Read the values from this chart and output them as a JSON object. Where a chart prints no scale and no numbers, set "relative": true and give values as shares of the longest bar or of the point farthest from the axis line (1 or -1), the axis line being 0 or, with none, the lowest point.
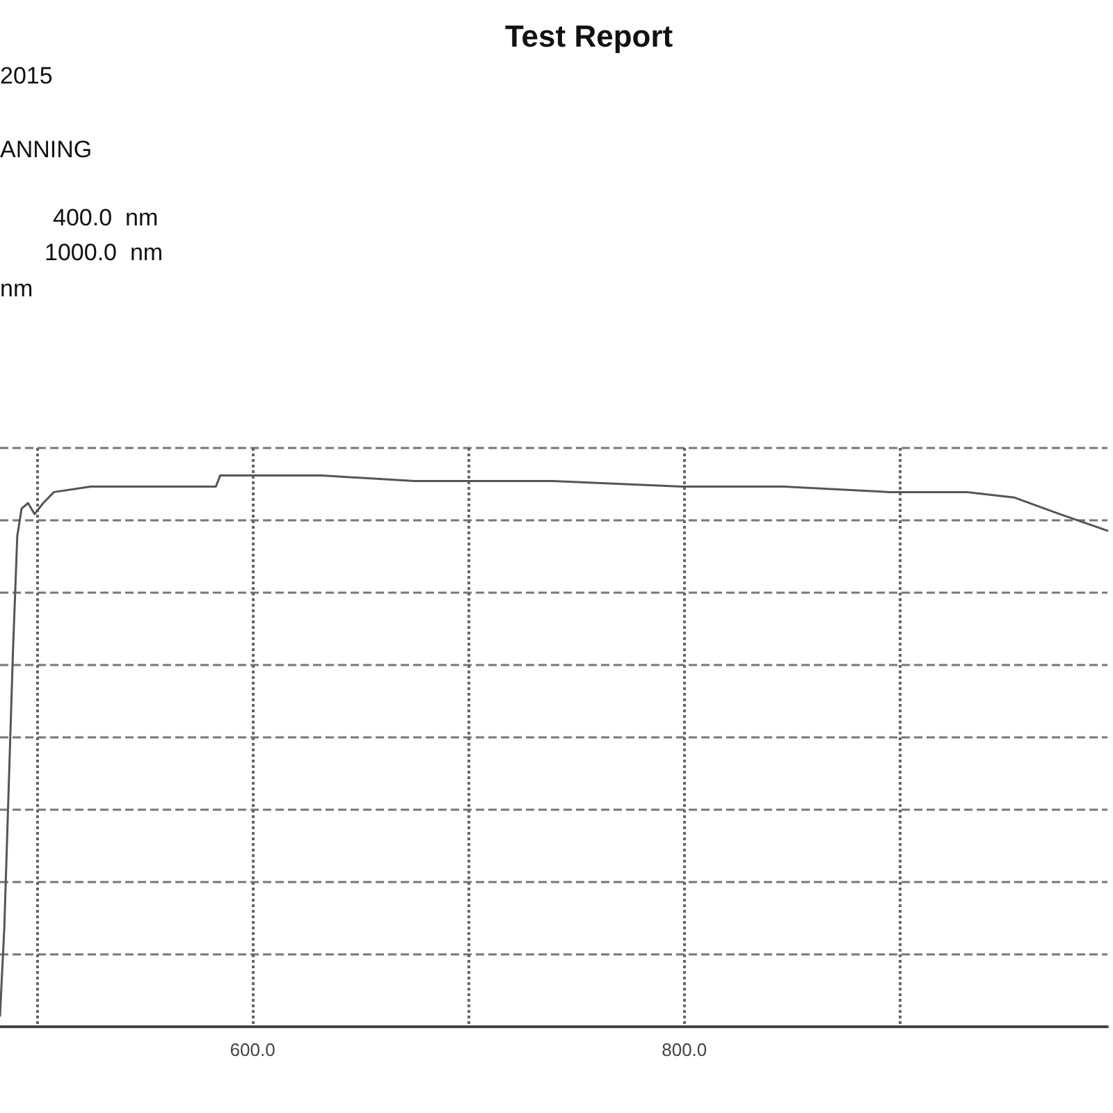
{
  "chart_data": {
    "type": "line",
    "title": "Test Report",
    "annotations": [
      "2015",
      "ANNING",
      "400.0  nm",
      "1000.0  nm",
      "nm"
    ],
    "relative": true,
    "xlim": [
      483,
      996
    ],
    "xticks": [
      {
        "value": 500,
        "label": null
      },
      {
        "value": 600,
        "label": "600.0"
      },
      {
        "value": 700,
        "label": null
      },
      {
        "value": 800,
        "label": "800.0"
      },
      {
        "value": 900,
        "label": null
      }
    ],
    "x": [
      483,
      485,
      487,
      489,
      491,
      493,
      496,
      499,
      503,
      508,
      525,
      545,
      568,
      583,
      585,
      632,
      675,
      718,
      739,
      799,
      846,
      895,
      931,
      953,
      974,
      996
    ],
    "series": [
      {
        "color": "#555555",
        "values": [
          0.02,
          0.18,
          0.43,
          0.68,
          0.89,
          0.94,
          0.95,
          0.93,
          0.95,
          0.97,
          0.98,
          0.98,
          0.98,
          0.98,
          1.0,
          1.0,
          0.99,
          0.99,
          0.99,
          0.98,
          0.98,
          0.97,
          0.97,
          0.96,
          0.93,
          0.9
        ]
      }
    ],
    "grid": true,
    "marker": "none",
    "line_style": "solid"
  }
}
